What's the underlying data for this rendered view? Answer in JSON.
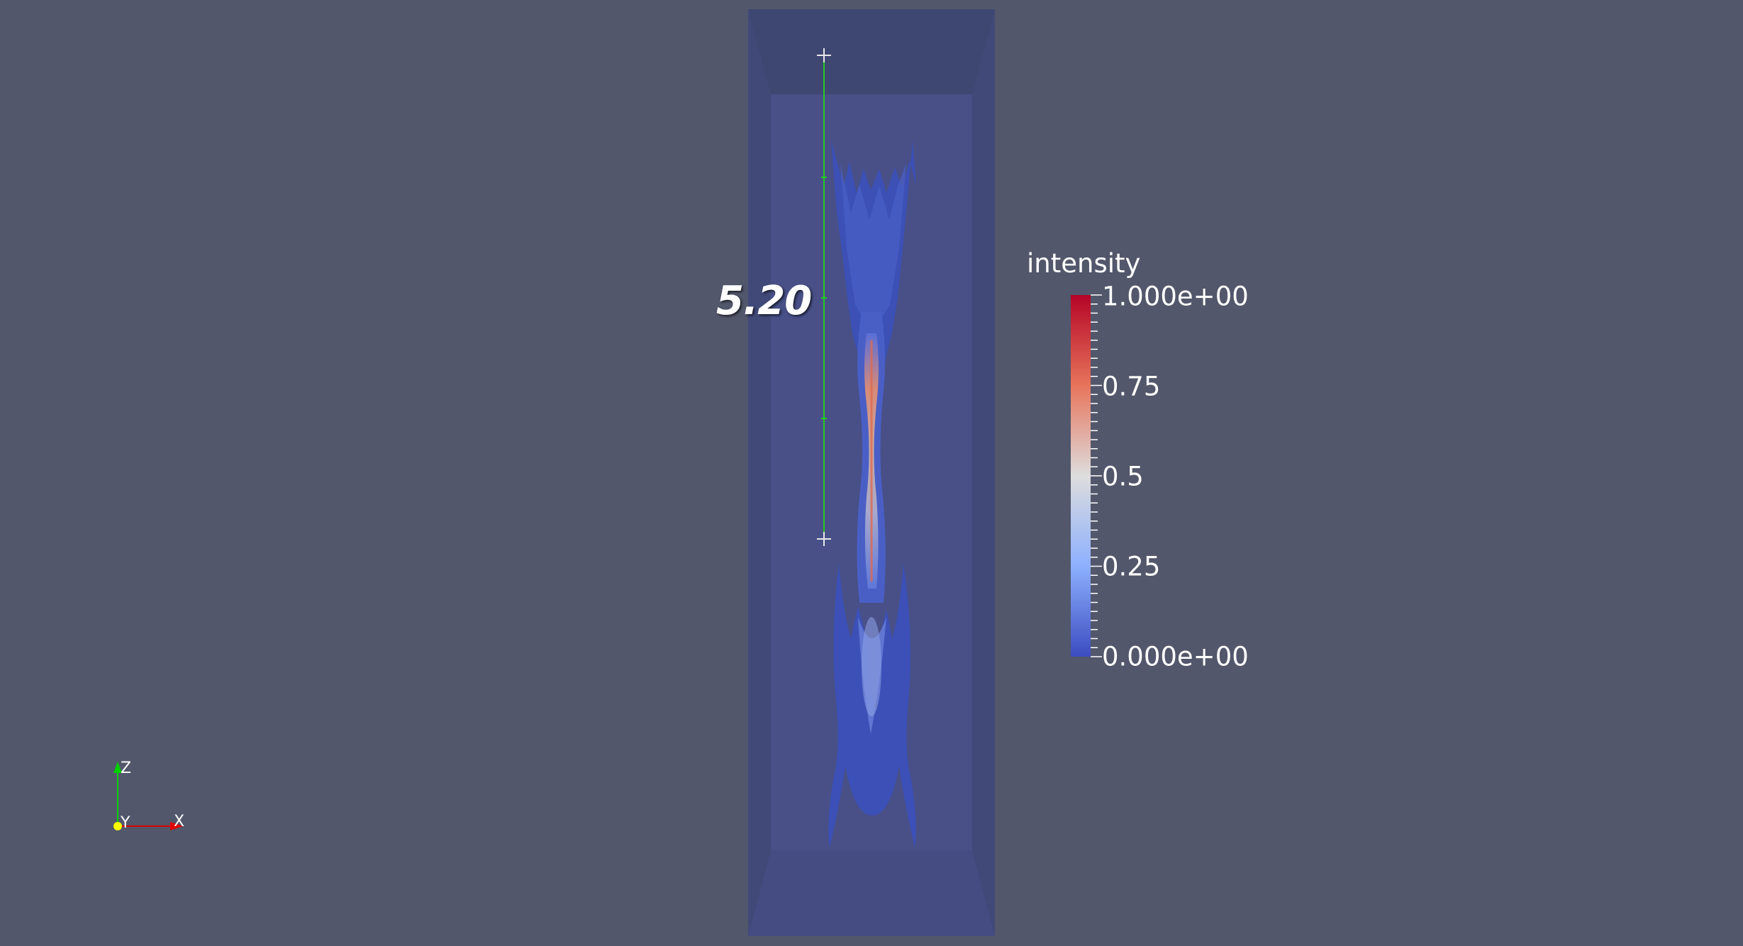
{
  "ruler": {
    "label": "5.20"
  },
  "color_legend": {
    "title": "intensity",
    "ticks": [
      "1.000e+00",
      "0.75",
      "0.5",
      "0.25",
      "0.000e+00"
    ],
    "colormap": [
      "#b40426",
      "#e7745b",
      "#dddddd",
      "#8db0fe",
      "#3b4cc0"
    ]
  },
  "orientation_axes": {
    "z_label": "Z",
    "y_label": "Y",
    "x_label": "X",
    "colors": {
      "z": "#00d000",
      "y": "#ffff00",
      "x": "#e00000"
    }
  },
  "colors": {
    "background": "#52576b",
    "ruler_line": "#22cc22"
  }
}
